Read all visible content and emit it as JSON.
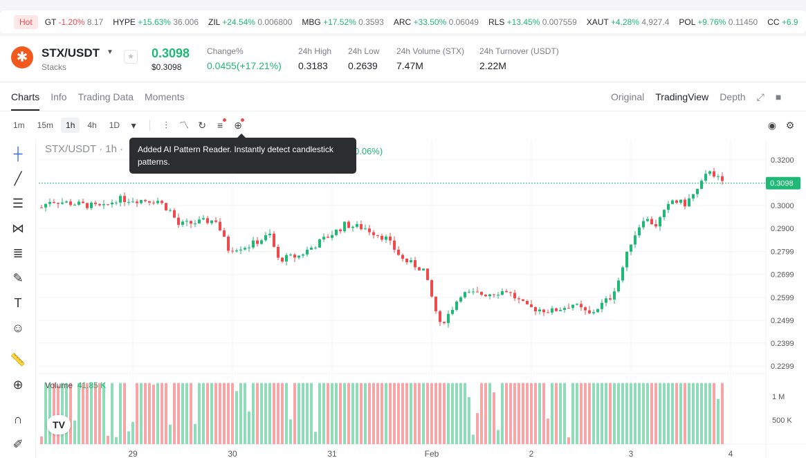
{
  "ticker": {
    "hot": "Hot",
    "items": [
      {
        "sym": "GT",
        "chg": "-1.20%",
        "price": "8.17",
        "dir": "dn"
      },
      {
        "sym": "HYPE",
        "chg": "+15.63%",
        "price": "36.006",
        "dir": "up"
      },
      {
        "sym": "ZIL",
        "chg": "+24.54%",
        "price": "0.006800",
        "dir": "up"
      },
      {
        "sym": "MBG",
        "chg": "+17.52%",
        "price": "0.3593",
        "dir": "up"
      },
      {
        "sym": "ARC",
        "chg": "+33.50%",
        "price": "0.06049",
        "dir": "up"
      },
      {
        "sym": "RLS",
        "chg": "+13.45%",
        "price": "0.007559",
        "dir": "up"
      },
      {
        "sym": "XAUT",
        "chg": "+4.28%",
        "price": "4,927.4",
        "dir": "up"
      },
      {
        "sym": "POL",
        "chg": "+9.76%",
        "price": "0.11450",
        "dir": "up"
      },
      {
        "sym": "CC",
        "chg": "+6.9",
        "price": "",
        "dir": "up"
      }
    ]
  },
  "header": {
    "pair": "STX/USDT",
    "name": "Stacks",
    "price": "0.3098",
    "price_usd": "$0.3098",
    "stats": [
      {
        "label": "Change%",
        "value": "0.0455(+17.21%)"
      },
      {
        "label": "24h High",
        "value": "0.3183"
      },
      {
        "label": "24h Low",
        "value": "0.2639"
      },
      {
        "label": "24h Volume (STX)",
        "value": "7.47M"
      },
      {
        "label": "24h Turnover (USDT)",
        "value": "2.22M"
      }
    ]
  },
  "tabs": [
    "Charts",
    "Info",
    "Trading Data",
    "Moments"
  ],
  "view_tabs": [
    "Original",
    "TradingView",
    "Depth"
  ],
  "intervals": [
    "1m",
    "15m",
    "1h",
    "4h",
    "1D"
  ],
  "chart": {
    "legend": "STX/USDT · 1h ·",
    "legend_change": "0.06%)",
    "tooltip": "Added AI Pattern Reader. Instantly detect candlestick patterns.",
    "volume_label": "Volume",
    "volume_value": "41.85 K",
    "current_price": "0.3098",
    "price_ticks": [
      "0.3200",
      "0.3000",
      "0.2900",
      "0.2799",
      "0.2699",
      "0.2599",
      "0.2499",
      "0.2399",
      "0.2299"
    ],
    "volume_ticks": [
      "1 M",
      "500 K"
    ],
    "time_ticks": [
      "29",
      "30",
      "31",
      "Feb",
      "2",
      "3",
      "4"
    ],
    "up_color": "#1fb874",
    "down_color": "#f0494c",
    "price_path": [
      [
        0,
        0.2992
      ],
      [
        2,
        0.3022
      ],
      [
        15,
        0.2992
      ],
      [
        18,
        0.3028
      ],
      [
        28,
        0.3022
      ],
      [
        31,
        0.2977
      ],
      [
        33,
        0.2916
      ],
      [
        42,
        0.2937
      ],
      [
        45,
        0.281
      ],
      [
        50,
        0.2825
      ],
      [
        55,
        0.2871
      ],
      [
        57,
        0.2765
      ],
      [
        62,
        0.278
      ],
      [
        67,
        0.2841
      ],
      [
        72,
        0.2901
      ],
      [
        73,
        0.2916
      ],
      [
        78,
        0.2901
      ],
      [
        83,
        0.2856
      ],
      [
        87,
        0.2765
      ],
      [
        92,
        0.272
      ],
      [
        94,
        0.2599
      ],
      [
        96,
        0.2478
      ],
      [
        98,
        0.2524
      ],
      [
        101,
        0.2614
      ],
      [
        107,
        0.2614
      ],
      [
        112,
        0.2629
      ],
      [
        117,
        0.2554
      ],
      [
        123,
        0.2539
      ],
      [
        128,
        0.2569
      ],
      [
        132,
        0.2524
      ],
      [
        137,
        0.2599
      ],
      [
        139,
        0.2675
      ],
      [
        142,
        0.2841
      ],
      [
        145,
        0.2946
      ],
      [
        148,
        0.2916
      ],
      [
        152,
        0.3022
      ],
      [
        155,
        0.3007
      ],
      [
        158,
        0.3067
      ],
      [
        161,
        0.3158
      ],
      [
        164,
        0.3097
      ]
    ]
  }
}
